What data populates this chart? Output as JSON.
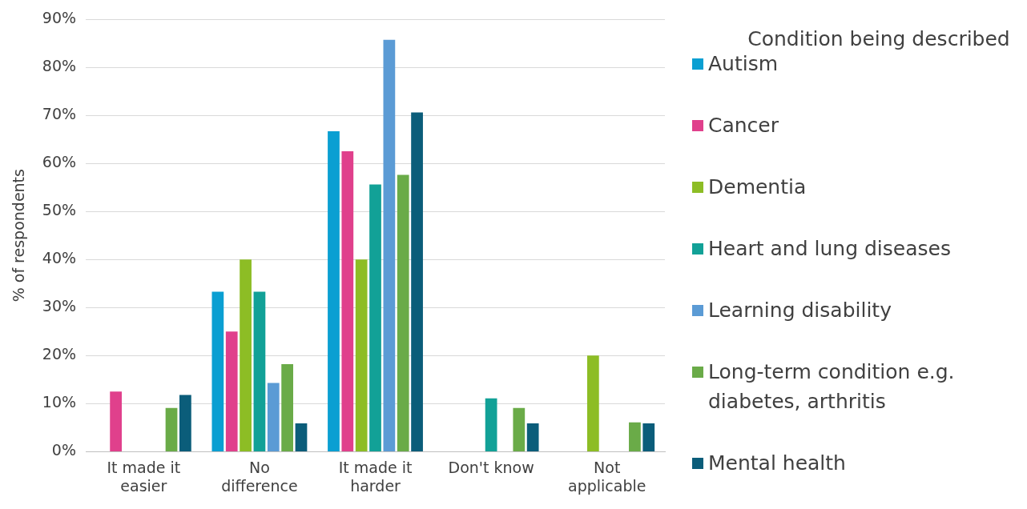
{
  "chart_data": {
    "type": "bar",
    "ylabel": "% of respondents",
    "legend_title": "Condition being described",
    "legend": "right",
    "categories": [
      "It made it easier",
      "No difference",
      "It made it harder",
      "Don't know",
      "Not applicable"
    ],
    "ylim": [
      0,
      90
    ],
    "yticks": [
      {
        "value": 0,
        "label": "0%"
      },
      {
        "value": 10,
        "label": "10%"
      },
      {
        "value": 20,
        "label": "20%"
      },
      {
        "value": 30,
        "label": "30%"
      },
      {
        "value": 40,
        "label": "40%"
      },
      {
        "value": 50,
        "label": "50%"
      },
      {
        "value": 60,
        "label": "60%"
      },
      {
        "value": 70,
        "label": "70%"
      },
      {
        "value": 80,
        "label": "80%"
      },
      {
        "value": 90,
        "label": "90%"
      }
    ],
    "grid": "y",
    "series": [
      {
        "name": "Autism",
        "color": "#0a9fd2",
        "values": [
          0,
          33.3,
          66.7,
          0,
          0
        ]
      },
      {
        "name": "Cancer",
        "color": "#e0408c",
        "values": [
          12.5,
          25,
          62.5,
          0,
          0
        ]
      },
      {
        "name": "Dementia",
        "color": "#8dbd25",
        "values": [
          0,
          40,
          40,
          0,
          20
        ]
      },
      {
        "name": "Heart and lung diseases",
        "color": "#12a197",
        "values": [
          0,
          33.3,
          55.6,
          11.1,
          0
        ]
      },
      {
        "name": "Learning disability",
        "color": "#5b9bd5",
        "values": [
          0,
          14.3,
          85.7,
          0,
          0
        ]
      },
      {
        "name": "Long-term condition e.g. diabetes, arthritis",
        "color": "#6aab48",
        "values": [
          9.1,
          18.2,
          57.6,
          9.1,
          6.1
        ]
      },
      {
        "name": "Mental health",
        "color": "#0b5d7a",
        "values": [
          11.8,
          5.9,
          70.6,
          5.9,
          5.9
        ]
      }
    ]
  }
}
